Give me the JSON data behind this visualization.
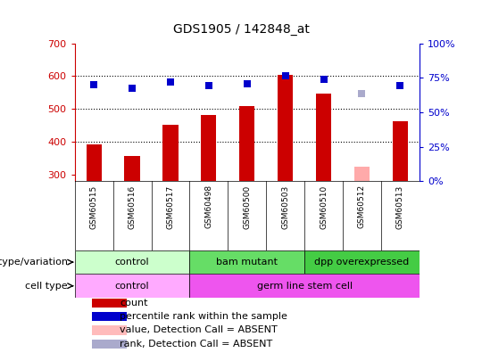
{
  "title": "GDS1905 / 142848_at",
  "samples": [
    "GSM60515",
    "GSM60516",
    "GSM60517",
    "GSM60498",
    "GSM60500",
    "GSM60503",
    "GSM60510",
    "GSM60512",
    "GSM60513"
  ],
  "count_values": [
    392,
    358,
    452,
    482,
    508,
    603,
    548,
    325,
    462
  ],
  "count_absent": [
    false,
    false,
    false,
    false,
    false,
    false,
    false,
    true,
    false
  ],
  "percentile_values": [
    573,
    562,
    583,
    572,
    578,
    600,
    590,
    548,
    572
  ],
  "percentile_absent": [
    false,
    false,
    false,
    false,
    false,
    false,
    false,
    true,
    false
  ],
  "ylim_left": [
    280,
    700
  ],
  "ylim_right": [
    0,
    100
  ],
  "yticks_left": [
    300,
    400,
    500,
    600,
    700
  ],
  "yticks_right": [
    0,
    25,
    50,
    75,
    100
  ],
  "count_color": "#cc0000",
  "count_absent_color": "#ffaaaa",
  "percentile_color": "#0000cc",
  "percentile_absent_color": "#aaaacc",
  "bar_width": 0.4,
  "genotype_groups": [
    {
      "label": "control",
      "start": 0,
      "end": 3,
      "color": "#ccffcc"
    },
    {
      "label": "bam mutant",
      "start": 3,
      "end": 6,
      "color": "#66dd66"
    },
    {
      "label": "dpp overexpressed",
      "start": 6,
      "end": 9,
      "color": "#44cc44"
    }
  ],
  "celltype_groups": [
    {
      "label": "control",
      "start": 0,
      "end": 3,
      "color": "#ffaaff"
    },
    {
      "label": "germ line stem cell",
      "start": 3,
      "end": 9,
      "color": "#ee55ee"
    }
  ],
  "genotype_label": "genotype/variation",
  "celltype_label": "cell type",
  "legend_items": [
    {
      "color": "#cc0000",
      "label": "count"
    },
    {
      "color": "#0000cc",
      "label": "percentile rank within the sample"
    },
    {
      "color": "#ffbbbb",
      "label": "value, Detection Call = ABSENT"
    },
    {
      "color": "#aaaacc",
      "label": "rank, Detection Call = ABSENT"
    }
  ],
  "plot_bg_color": "#ffffff",
  "xlabels_bg_color": "#cccccc",
  "left_tick_color": "#cc0000",
  "right_tick_color": "#0000cc",
  "title_fontsize": 10,
  "tick_fontsize": 8,
  "label_fontsize": 8,
  "legend_fontsize": 8
}
